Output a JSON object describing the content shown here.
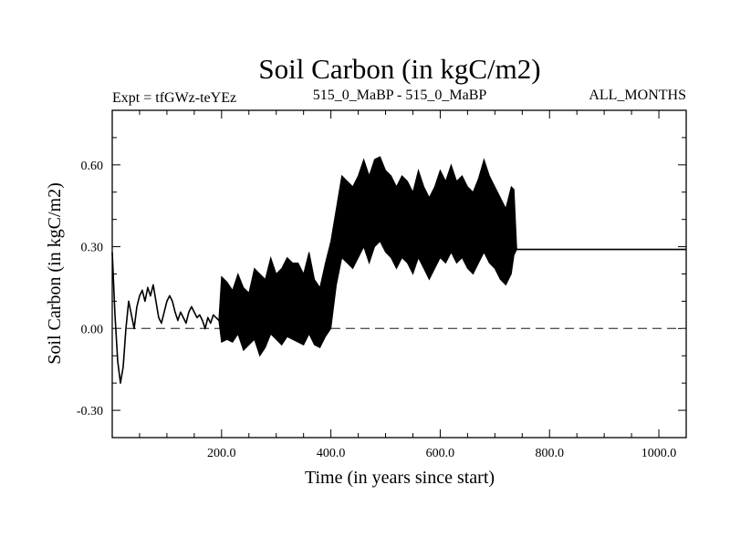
{
  "chart_data": {
    "type": "line",
    "title": "Soil Carbon (in kgC/m2)",
    "subtitle_left": "Expt = tfGWz-teYEz",
    "subtitle_center": "515_0_MaBP - 515_0_MaBP",
    "subtitle_right": "ALL_MONTHS",
    "xlabel": "Time (in years since start)",
    "ylabel": "Soil Carbon (in kgC/m2)",
    "xlim": [
      0,
      1050
    ],
    "ylim": [
      -0.4,
      0.8
    ],
    "x_ticks": [
      {
        "value": 200,
        "label": "200.0"
      },
      {
        "value": 400,
        "label": "400.0"
      },
      {
        "value": 600,
        "label": "600.0"
      },
      {
        "value": 800,
        "label": "800.0"
      },
      {
        "value": 1000,
        "label": "1000.0"
      }
    ],
    "y_ticks": [
      {
        "value": -0.3,
        "label": "-0.30"
      },
      {
        "value": 0.0,
        "label": "0.00"
      },
      {
        "value": 0.3,
        "label": "0.30"
      },
      {
        "value": 0.6,
        "label": "0.60"
      }
    ],
    "reference_line": {
      "y": 0.0,
      "style": "dashed"
    },
    "series": [
      {
        "name": "Soil Carbon",
        "x": [
          0,
          5,
          10,
          15,
          20,
          25,
          30,
          35,
          40,
          45,
          50,
          55,
          60,
          65,
          70,
          75,
          80,
          85,
          90,
          95,
          100,
          105,
          110,
          115,
          120,
          125,
          130,
          135,
          140,
          145,
          150,
          155,
          160,
          165,
          170,
          175,
          180,
          185,
          190,
          195,
          200,
          210,
          220,
          230,
          240,
          250,
          260,
          270,
          280,
          290,
          300,
          310,
          320,
          330,
          340,
          350,
          360,
          370,
          380,
          390,
          400,
          410,
          420,
          430,
          440,
          450,
          460,
          470,
          480,
          490,
          500,
          510,
          520,
          530,
          540,
          550,
          560,
          570,
          580,
          590,
          600,
          610,
          620,
          630,
          640,
          650,
          660,
          670,
          680,
          690,
          700,
          710,
          720,
          730,
          735,
          740,
          800,
          900,
          1000,
          1050
        ],
        "y_mid": [
          0.28,
          0.05,
          -0.12,
          -0.2,
          -0.14,
          0.0,
          0.1,
          0.05,
          0.0,
          0.08,
          0.12,
          0.14,
          0.1,
          0.15,
          0.12,
          0.16,
          0.1,
          0.04,
          0.02,
          0.06,
          0.1,
          0.12,
          0.1,
          0.06,
          0.03,
          0.06,
          0.04,
          0.02,
          0.06,
          0.08,
          0.06,
          0.04,
          0.05,
          0.03,
          0.0,
          0.04,
          0.02,
          0.05,
          0.04,
          0.03,
          0.05,
          0.06,
          0.05,
          0.1,
          0.04,
          0.03,
          0.12,
          0.08,
          0.06,
          0.14,
          0.08,
          0.1,
          0.14,
          0.12,
          0.1,
          0.07,
          0.15,
          0.05,
          0.04,
          0.12,
          0.2,
          0.3,
          0.42,
          0.4,
          0.38,
          0.42,
          0.46,
          0.4,
          0.46,
          0.48,
          0.44,
          0.42,
          0.38,
          0.42,
          0.4,
          0.36,
          0.42,
          0.38,
          0.34,
          0.38,
          0.42,
          0.4,
          0.44,
          0.4,
          0.42,
          0.38,
          0.36,
          0.4,
          0.44,
          0.4,
          0.38,
          0.34,
          0.3,
          0.36,
          0.31,
          0.29,
          0.29,
          0.29,
          0.29,
          0.29
        ],
        "y_low": [
          0.28,
          0.05,
          -0.12,
          -0.2,
          -0.14,
          0.0,
          0.1,
          0.05,
          0.0,
          0.08,
          0.12,
          0.14,
          0.1,
          0.15,
          0.12,
          0.16,
          0.1,
          0.04,
          0.02,
          0.06,
          0.1,
          0.12,
          0.1,
          0.06,
          0.03,
          0.06,
          0.04,
          0.02,
          0.06,
          0.08,
          0.06,
          0.04,
          0.05,
          0.03,
          0.0,
          0.04,
          0.02,
          0.05,
          0.04,
          0.03,
          -0.05,
          -0.04,
          -0.05,
          -0.02,
          -0.08,
          -0.06,
          -0.04,
          -0.1,
          -0.07,
          -0.02,
          -0.04,
          -0.06,
          -0.03,
          -0.04,
          -0.05,
          -0.06,
          -0.02,
          -0.06,
          -0.07,
          -0.03,
          0.0,
          0.16,
          0.26,
          0.24,
          0.22,
          0.26,
          0.3,
          0.24,
          0.3,
          0.32,
          0.28,
          0.26,
          0.22,
          0.26,
          0.24,
          0.2,
          0.26,
          0.22,
          0.18,
          0.22,
          0.26,
          0.24,
          0.28,
          0.24,
          0.26,
          0.22,
          0.2,
          0.24,
          0.28,
          0.24,
          0.22,
          0.18,
          0.16,
          0.2,
          0.27,
          0.29,
          0.29,
          0.29,
          0.29,
          0.29
        ],
        "y_high": [
          0.28,
          0.05,
          -0.12,
          -0.2,
          -0.14,
          0.0,
          0.1,
          0.05,
          0.0,
          0.08,
          0.12,
          0.14,
          0.1,
          0.15,
          0.12,
          0.16,
          0.1,
          0.04,
          0.02,
          0.06,
          0.1,
          0.12,
          0.1,
          0.06,
          0.03,
          0.06,
          0.04,
          0.02,
          0.06,
          0.08,
          0.06,
          0.04,
          0.05,
          0.03,
          0.0,
          0.04,
          0.02,
          0.05,
          0.04,
          0.03,
          0.19,
          0.17,
          0.14,
          0.2,
          0.15,
          0.13,
          0.22,
          0.2,
          0.18,
          0.26,
          0.2,
          0.22,
          0.26,
          0.24,
          0.24,
          0.2,
          0.28,
          0.18,
          0.15,
          0.24,
          0.32,
          0.44,
          0.56,
          0.54,
          0.52,
          0.56,
          0.62,
          0.56,
          0.62,
          0.63,
          0.58,
          0.56,
          0.52,
          0.56,
          0.54,
          0.5,
          0.58,
          0.52,
          0.48,
          0.52,
          0.58,
          0.54,
          0.6,
          0.54,
          0.56,
          0.52,
          0.5,
          0.55,
          0.62,
          0.56,
          0.52,
          0.48,
          0.44,
          0.52,
          0.51,
          0.29,
          0.29,
          0.29,
          0.29,
          0.29
        ]
      }
    ]
  }
}
